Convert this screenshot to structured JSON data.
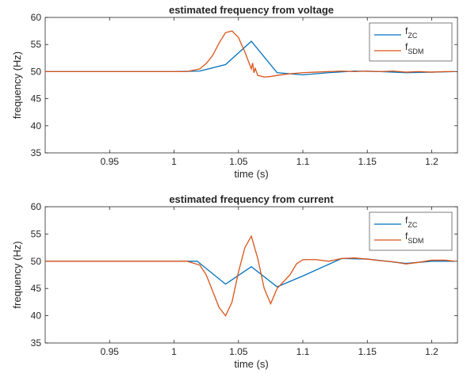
{
  "colors": {
    "zc": "#0072BD",
    "sdm": "#D95319",
    "axis": "#262626",
    "background": "#ffffff"
  },
  "chart_data": [
    {
      "type": "line",
      "title": "estimated frequency from voltage",
      "xlabel": "time (s)",
      "ylabel": "frequency (Hz)",
      "xlim": [
        0.9,
        1.22
      ],
      "ylim": [
        35,
        60
      ],
      "xticks": [
        0.95,
        1,
        1.05,
        1.1,
        1.15,
        1.2
      ],
      "xticklabels": [
        "0.95",
        "1",
        "1.05",
        "1.1",
        "1.15",
        "1.2"
      ],
      "yticks": [
        35,
        40,
        45,
        50,
        55,
        60
      ],
      "yticklabels": [
        "35",
        "40",
        "45",
        "50",
        "55",
        "60"
      ],
      "grid": false,
      "legend_position": "top-right",
      "series": [
        {
          "name": "f",
          "subscript": "ZC",
          "color": "#0072BD",
          "x": [
            0.9,
            0.92,
            0.94,
            0.96,
            0.98,
            1.0,
            1.02,
            1.04,
            1.06,
            1.08,
            1.1,
            1.12,
            1.14,
            1.16,
            1.18,
            1.2,
            1.218
          ],
          "y": [
            50,
            50,
            50,
            50,
            50,
            50,
            50.1,
            51.3,
            55.6,
            49.8,
            49.4,
            49.8,
            50.1,
            50.0,
            49.8,
            49.9,
            50
          ]
        },
        {
          "name": "f",
          "subscript": "SDM",
          "color": "#D95319",
          "x": [
            0.9,
            0.92,
            0.94,
            0.96,
            0.98,
            1.0,
            1.01,
            1.02,
            1.025,
            1.03,
            1.035,
            1.04,
            1.045,
            1.05,
            1.055,
            1.06,
            1.061,
            1.062,
            1.063,
            1.065,
            1.07,
            1.075,
            1.08,
            1.09,
            1.1,
            1.11,
            1.12,
            1.13,
            1.14,
            1.15,
            1.16,
            1.17,
            1.18,
            1.19,
            1.2,
            1.21,
            1.218
          ],
          "y": [
            50,
            50,
            50,
            50,
            50,
            50,
            50,
            50.5,
            51.5,
            53,
            55.3,
            57.2,
            57.5,
            56.3,
            53.6,
            50.5,
            51.6,
            49.8,
            50.6,
            49.3,
            49.0,
            49.1,
            49.3,
            49.6,
            49.8,
            49.9,
            50.0,
            50.1,
            50.0,
            50.1,
            50.0,
            50.1,
            49.9,
            50.0,
            49.9,
            50.0,
            50
          ]
        }
      ]
    },
    {
      "type": "line",
      "title": "estimated frequency from current",
      "xlabel": "time (s)",
      "ylabel": "frequency (Hz)",
      "xlim": [
        0.9,
        1.22
      ],
      "ylim": [
        35,
        60
      ],
      "xticks": [
        0.95,
        1,
        1.05,
        1.1,
        1.15,
        1.2
      ],
      "xticklabels": [
        "0.95",
        "1",
        "1.05",
        "1.1",
        "1.15",
        "1.2"
      ],
      "yticks": [
        35,
        40,
        45,
        50,
        55,
        60
      ],
      "yticklabels": [
        "35",
        "40",
        "45",
        "50",
        "55",
        "60"
      ],
      "grid": false,
      "legend_position": "top-right",
      "series": [
        {
          "name": "f",
          "subscript": "ZC",
          "color": "#0072BD",
          "x": [
            0.9,
            0.92,
            0.94,
            0.96,
            0.98,
            1.0,
            1.018,
            1.04,
            1.06,
            1.08,
            1.1,
            1.13,
            1.15,
            1.18,
            1.2,
            1.218
          ],
          "y": [
            50,
            50,
            50,
            50,
            50,
            50,
            50,
            45.8,
            49.0,
            45.3,
            47.3,
            50.5,
            50.4,
            49.6,
            50.0,
            50
          ]
        },
        {
          "name": "f",
          "subscript": "SDM",
          "color": "#D95319",
          "x": [
            0.9,
            0.92,
            0.94,
            0.96,
            0.98,
            1.0,
            1.01,
            1.02,
            1.025,
            1.03,
            1.035,
            1.04,
            1.045,
            1.05,
            1.055,
            1.06,
            1.065,
            1.07,
            1.075,
            1.08,
            1.09,
            1.095,
            1.1,
            1.11,
            1.12,
            1.13,
            1.14,
            1.15,
            1.16,
            1.17,
            1.18,
            1.19,
            1.2,
            1.21,
            1.218
          ],
          "y": [
            50,
            50,
            50,
            50,
            50,
            50,
            50,
            49.3,
            47.5,
            44.5,
            41.5,
            40.0,
            42.5,
            48.0,
            52.5,
            54.6,
            50.5,
            45.0,
            42.2,
            45.0,
            47.5,
            49.5,
            50.3,
            50.3,
            50.0,
            50.5,
            50.6,
            50.4,
            50.1,
            49.9,
            49.5,
            49.8,
            50.2,
            50.2,
            50
          ]
        }
      ]
    }
  ]
}
